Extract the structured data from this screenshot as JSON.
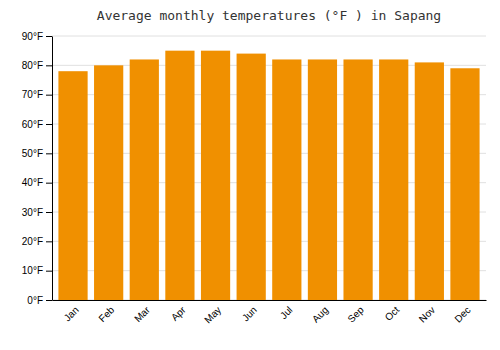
{
  "chart_data": {
    "type": "bar",
    "title": "Average monthly temperatures (°F ) in Sapang",
    "categories": [
      "Jan",
      "Feb",
      "Mar",
      "Apr",
      "May",
      "Jun",
      "Jul",
      "Aug",
      "Sep",
      "Oct",
      "Nov",
      "Dec"
    ],
    "values": [
      78,
      80,
      82,
      85,
      85,
      84,
      82,
      82,
      82,
      82,
      81,
      79
    ],
    "color": "#F09000",
    "ylim": [
      0,
      90
    ],
    "yticks": [
      {
        "value": 0,
        "label": "0°F"
      },
      {
        "value": 10,
        "label": "10°F"
      },
      {
        "value": 20,
        "label": "20°F"
      },
      {
        "value": 30,
        "label": "30°F"
      },
      {
        "value": 40,
        "label": "40°F"
      },
      {
        "value": 50,
        "label": "50°F"
      },
      {
        "value": 60,
        "label": "60°F"
      },
      {
        "value": 70,
        "label": "70°F"
      },
      {
        "value": 80,
        "label": "80°F"
      },
      {
        "value": 90,
        "label": "90°F"
      }
    ],
    "grid": true
  }
}
